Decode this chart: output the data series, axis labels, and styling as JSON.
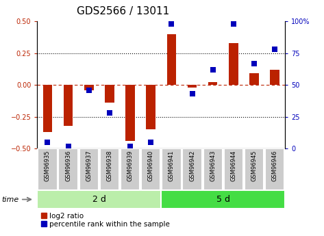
{
  "title": "GDS2566 / 13011",
  "samples": [
    "GSM96935",
    "GSM96936",
    "GSM96937",
    "GSM96938",
    "GSM96939",
    "GSM96940",
    "GSM96941",
    "GSM96942",
    "GSM96943",
    "GSM96944",
    "GSM96945",
    "GSM96946"
  ],
  "log2_ratio": [
    -0.37,
    -0.32,
    -0.04,
    -0.14,
    -0.44,
    -0.35,
    0.4,
    -0.02,
    0.02,
    0.33,
    0.09,
    0.12
  ],
  "percentile": [
    5,
    2,
    46,
    28,
    2,
    5,
    98,
    43,
    62,
    98,
    67,
    78
  ],
  "groups": [
    {
      "label": "2 d",
      "start": 0,
      "end": 6,
      "color": "#bbeeaa"
    },
    {
      "label": "5 d",
      "start": 6,
      "end": 12,
      "color": "#44dd44"
    }
  ],
  "group_time_label": "time",
  "ylim_left": [
    -0.5,
    0.5
  ],
  "ylim_right": [
    0,
    100
  ],
  "yticks_left": [
    -0.5,
    -0.25,
    0,
    0.25,
    0.5
  ],
  "yticks_right": [
    0,
    25,
    50,
    75,
    100
  ],
  "bar_color": "#bb2200",
  "dot_color": "#0000bb",
  "bar_width": 0.45,
  "dot_size": 40,
  "legend_items": [
    "log2 ratio",
    "percentile rank within the sample"
  ],
  "title_fontsize": 11,
  "tick_fontsize": 7,
  "sample_fontsize": 6,
  "group_fontsize": 9,
  "legend_fontsize": 7.5,
  "box_color": "#cccccc",
  "box_edge_color": "#ffffff"
}
